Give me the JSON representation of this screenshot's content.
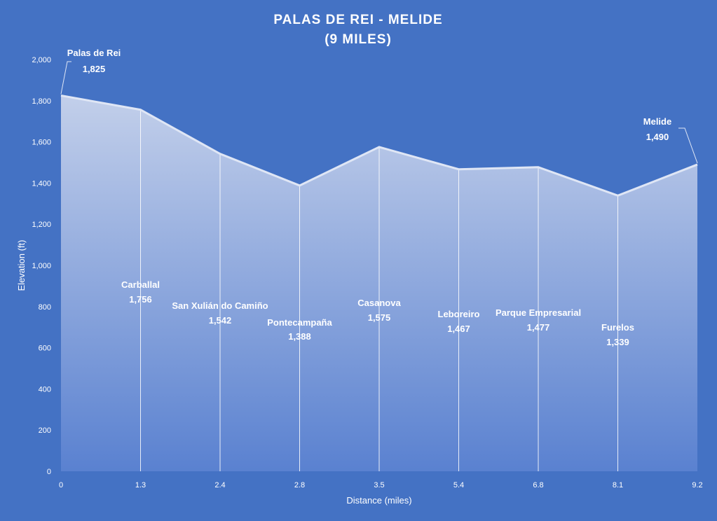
{
  "chart_data": {
    "type": "area",
    "title_lines": [
      "PALAS DE REI - MELIDE",
      "(9 MILES)"
    ],
    "xlabel": "Distance (miles)",
    "ylabel": "Elevation (ft)",
    "ylim": [
      0,
      2000
    ],
    "yticks": [
      0,
      200,
      400,
      600,
      800,
      1000,
      1200,
      1400,
      1600,
      1800,
      2000
    ],
    "ytick_labels": [
      "0",
      "200",
      "400",
      "600",
      "800",
      "1,000",
      "1,200",
      "1,400",
      "1,600",
      "1,800",
      "2,000"
    ],
    "categories": [
      "0",
      "1.3",
      "2.4",
      "2.8",
      "3.5",
      "5.4",
      "6.8",
      "8.1",
      "9.2"
    ],
    "values": [
      1825,
      1756,
      1542,
      1388,
      1575,
      1467,
      1477,
      1339,
      1490
    ],
    "points": [
      {
        "name": "Palas de Rei",
        "value_label": "1,825"
      },
      {
        "name": "Carballal",
        "value_label": "1,756"
      },
      {
        "name": "San Xulián do Camiño",
        "value_label": "1,542"
      },
      {
        "name": "Pontecampaña",
        "value_label": "1,388"
      },
      {
        "name": "Casanova",
        "value_label": "1,575"
      },
      {
        "name": "Leboreiro",
        "value_label": "1,467"
      },
      {
        "name": "Parque Empresarial",
        "value_label": "1,477"
      },
      {
        "name": "Furelos",
        "value_label": "1,339"
      },
      {
        "name": "Melide",
        "value_label": "1,490"
      }
    ],
    "grid": false,
    "legend": "none",
    "colors": {
      "background": "#4472c4",
      "area_top": "#c9d4ec",
      "area_bottom": "#5b82d1",
      "line": "#dfe6f5",
      "text": "#ffffff"
    }
  }
}
